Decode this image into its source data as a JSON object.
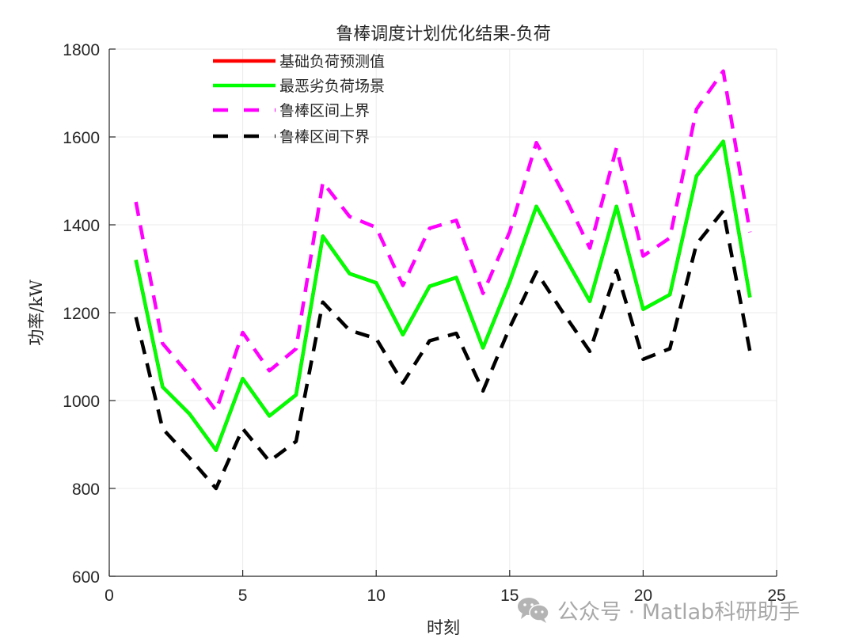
{
  "chart_data": {
    "type": "line",
    "title": "鲁棒调度计划优化结果-负荷",
    "xlabel": "时刻",
    "ylabel": "功率/kW",
    "xlim": [
      0,
      25
    ],
    "ylim": [
      600,
      1800
    ],
    "xticks": [
      0,
      5,
      10,
      15,
      20,
      25
    ],
    "yticks": [
      600,
      800,
      1000,
      1200,
      1400,
      1600,
      1800
    ],
    "grid": true,
    "legend_position": "upper-left-inside",
    "x": [
      1,
      2,
      3,
      4,
      5,
      6,
      7,
      8,
      9,
      10,
      11,
      12,
      13,
      14,
      15,
      16,
      17,
      18,
      19,
      20,
      21,
      22,
      23,
      24
    ],
    "series": [
      {
        "name": "基础负荷预测值",
        "color": "#ff0000",
        "style": "solid",
        "note": "hidden beneath worst-case line",
        "values": [
          1320,
          1031,
          970,
          887,
          1050,
          965,
          1013,
          1374,
          1289,
          1268,
          1150,
          1260,
          1280,
          1120,
          1270,
          1442,
          1334,
          1226,
          1442,
          1208,
          1241,
          1511,
          1590,
          1235
        ]
      },
      {
        "name": "最恶劣负荷场景",
        "color": "#00ff00",
        "style": "solid",
        "values": [
          1320,
          1031,
          970,
          887,
          1050,
          965,
          1013,
          1374,
          1289,
          1268,
          1150,
          1260,
          1280,
          1120,
          1270,
          1442,
          1334,
          1226,
          1442,
          1208,
          1241,
          1511,
          1590,
          1235
        ]
      },
      {
        "name": "鲁棒区间上界",
        "color": "#ff00ff",
        "style": "dashed",
        "values": [
          1452,
          1130,
          1058,
          977,
          1155,
          1068,
          1118,
          1497,
          1419,
          1394,
          1262,
          1392,
          1410,
          1244,
          1384,
          1587,
          1473,
          1347,
          1575,
          1329,
          1370,
          1663,
          1750,
          1383
        ]
      },
      {
        "name": "鲁棒区间下界",
        "color": "#000000",
        "style": "dashed",
        "values": [
          1190,
          936,
          870,
          800,
          936,
          862,
          907,
          1224,
          1160,
          1141,
          1040,
          1136,
          1153,
          1022,
          1166,
          1293,
          1200,
          1112,
          1296,
          1094,
          1118,
          1356,
          1432,
          1112
        ]
      }
    ]
  },
  "watermark": {
    "icon": "wechat-icon",
    "text": "公众号 · Matlab科研助手"
  }
}
